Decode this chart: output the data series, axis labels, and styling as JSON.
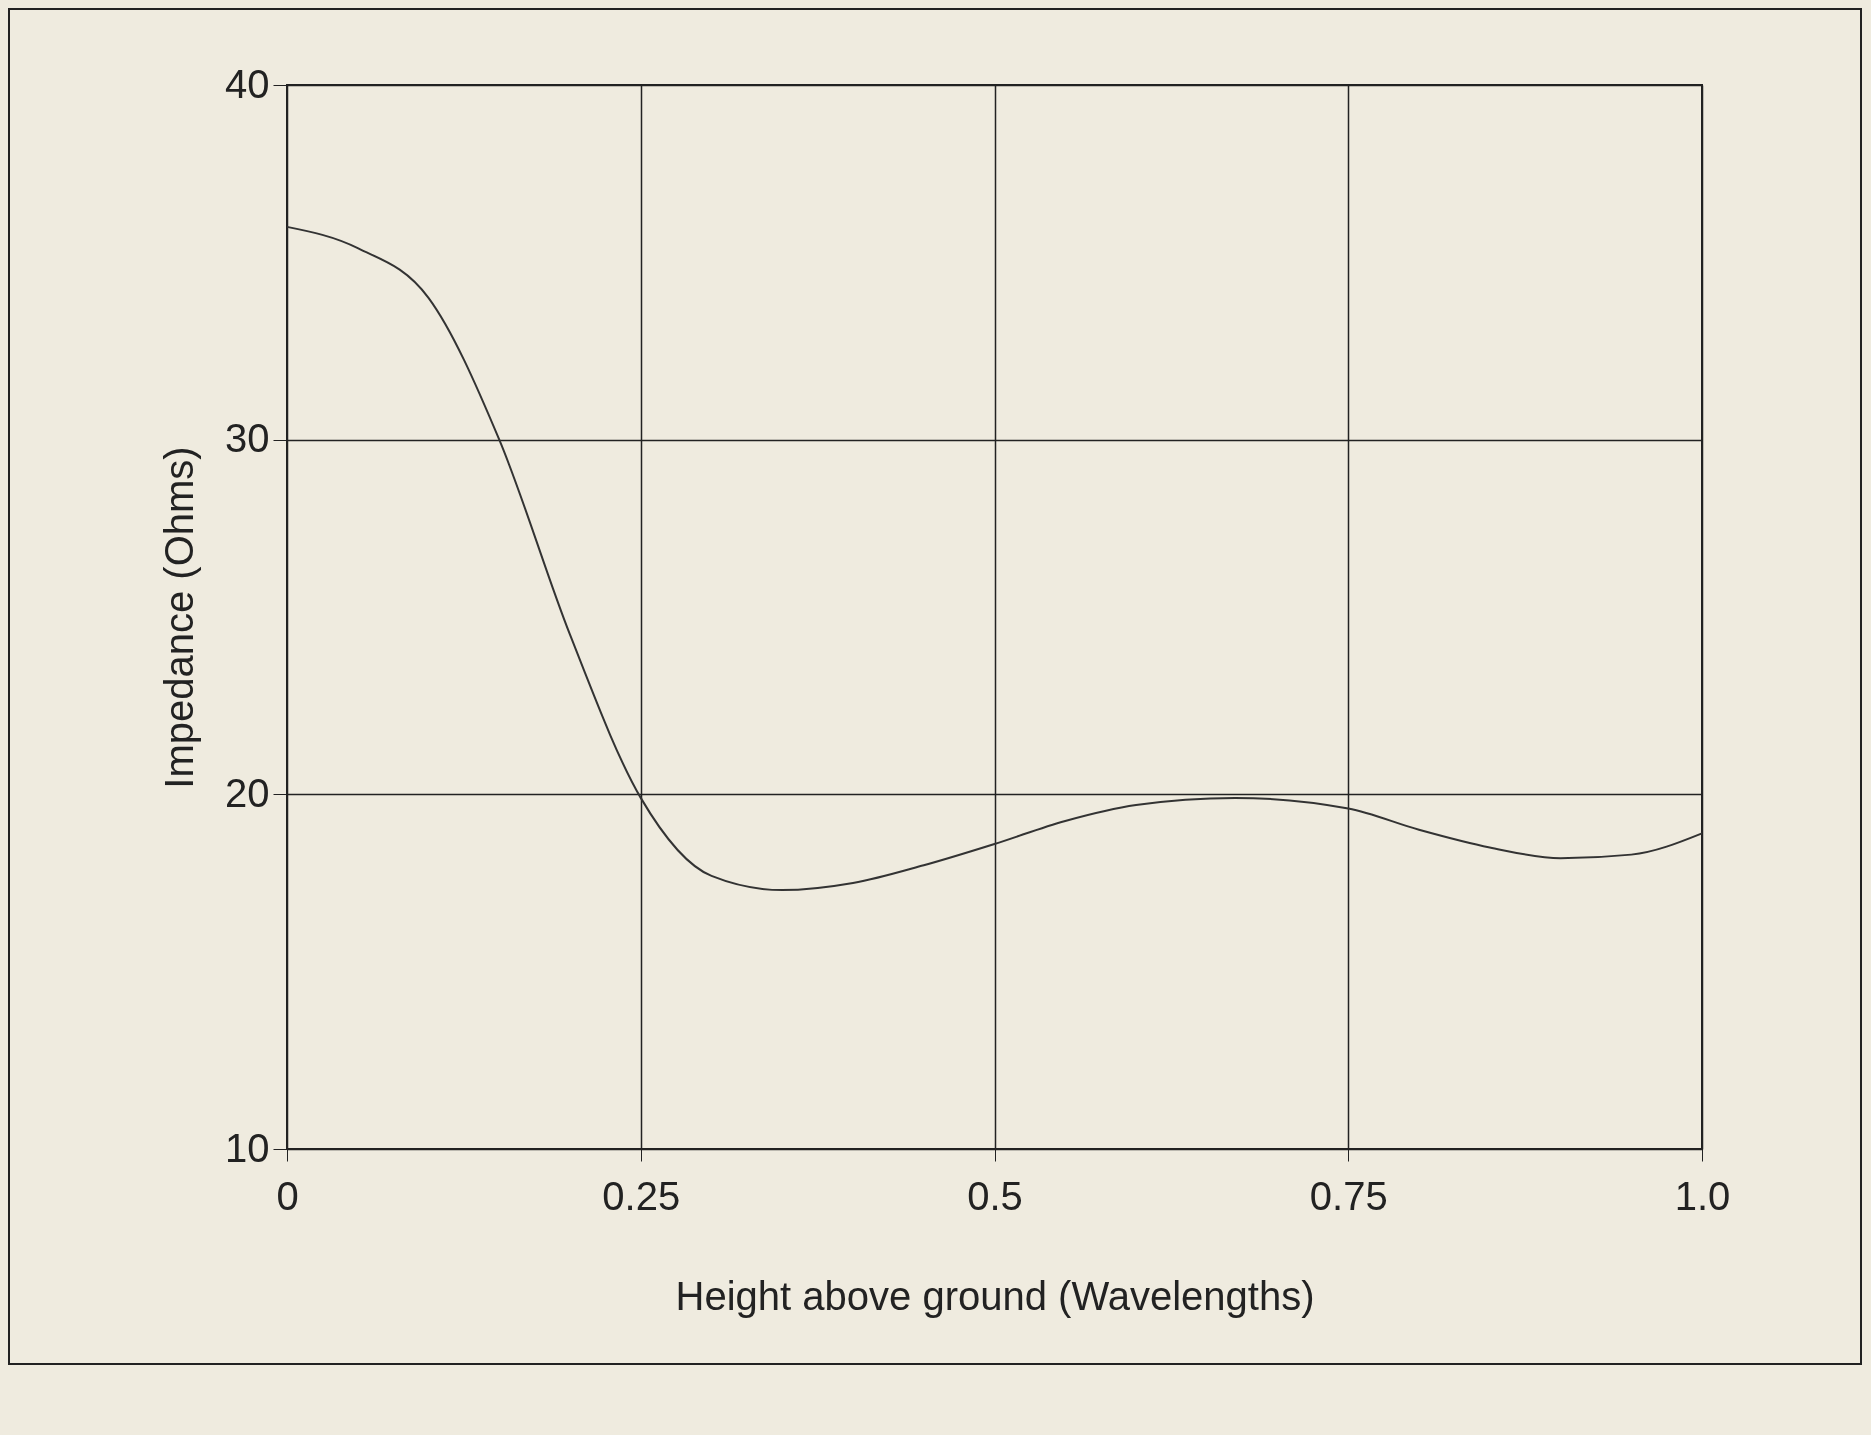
{
  "chart_data": {
    "type": "line",
    "xlabel": "Height above ground (Wavelengths)",
    "ylabel": "Impedance (Ohms)",
    "x": [
      0,
      0.05,
      0.1,
      0.15,
      0.2,
      0.25,
      0.3,
      0.35,
      0.4,
      0.45,
      0.5,
      0.55,
      0.6,
      0.67,
      0.75,
      0.8,
      0.85,
      0.9,
      0.95,
      1.0
    ],
    "series": [
      {
        "color": "#333333",
        "values": [
          36,
          35.4,
          34,
          30,
          24.5,
          19.9,
          17.7,
          17.3,
          17.5,
          18,
          18.6,
          19.25,
          19.7,
          19.9,
          19.6,
          19,
          18.5,
          18.2,
          18.3,
          18.9
        ]
      }
    ],
    "xlim": [
      0,
      1
    ],
    "xticks": [
      0,
      0.25,
      0.5,
      0.75,
      {
        "value": 1,
        "label": "1.0"
      }
    ],
    "ylim": [
      10,
      40
    ],
    "yticks": [
      10,
      20,
      30,
      40
    ],
    "grid": true,
    "legend": false,
    "marker": "none",
    "line_style": "solid"
  }
}
